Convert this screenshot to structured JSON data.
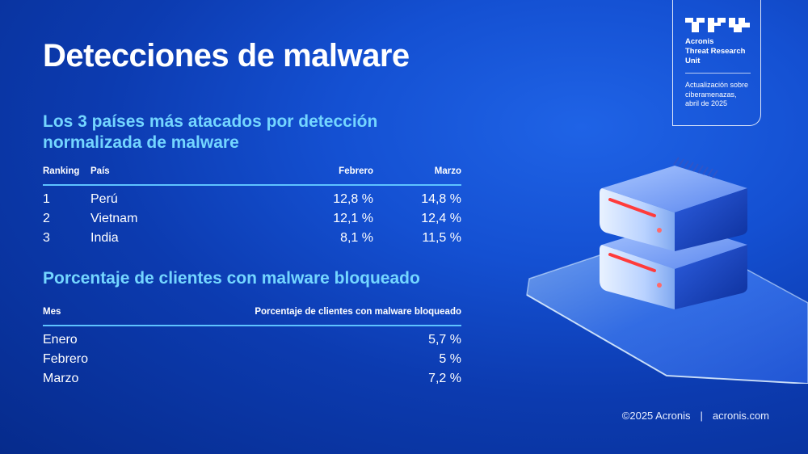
{
  "page": {
    "title": "Detecciones de malware"
  },
  "badge": {
    "name_lines": [
      "Acronis",
      "Threat Research",
      "Unit"
    ],
    "subtitle_lines": [
      "Actualización sobre",
      "ciberamenazas,",
      "abril de 2025"
    ],
    "icon": "tru-logo-icon"
  },
  "section1": {
    "title_lines": [
      "Los 3 países más atacados por detección",
      "normalizada de malware"
    ],
    "headers": {
      "ranking": "Ranking",
      "pais": "País",
      "febrero": "Febrero",
      "marzo": "Marzo"
    },
    "rows": [
      {
        "rank": "1",
        "country": "Perú",
        "febrero": "12,8 %",
        "marzo": "14,8 %"
      },
      {
        "rank": "2",
        "country": "Vietnam",
        "febrero": "12,1 %",
        "marzo": "12,4 %"
      },
      {
        "rank": "3",
        "country": "India",
        "febrero": "8,1 %",
        "marzo": "11,5 %"
      }
    ]
  },
  "section2": {
    "title": "Porcentaje de clientes con malware bloqueado",
    "headers": {
      "mes": "Mes",
      "pct": "Porcentaje de clientes con malware bloqueado"
    },
    "rows": [
      {
        "month": "Enero",
        "value": "5,7 %"
      },
      {
        "month": "Febrero",
        "value": "5 %"
      },
      {
        "month": "Marzo",
        "value": "7,2 %"
      }
    ]
  },
  "footer": {
    "copyright": "©2025 Acronis",
    "separator": "|",
    "site": "acronis.com"
  },
  "illustration": {
    "icon": "server-stack-icon"
  },
  "colors": {
    "accent": "#74d6ff",
    "rule": "#5ec3ff",
    "background": "#1450d2"
  }
}
